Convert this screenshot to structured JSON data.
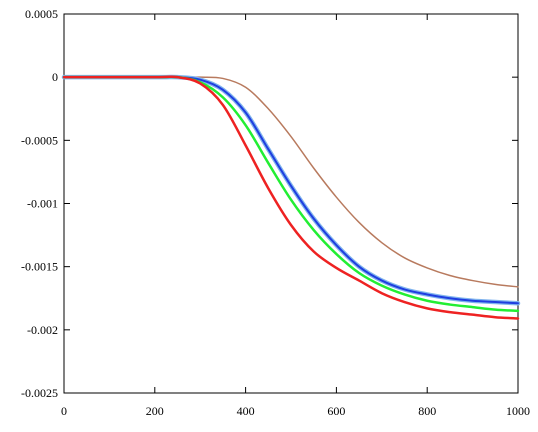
{
  "chart_data": {
    "type": "line",
    "title": "",
    "xlabel": "",
    "ylabel": "",
    "xlim": [
      0,
      1000
    ],
    "ylim": [
      -0.0025,
      0.0005
    ],
    "grid": false,
    "x_ticks": [
      0,
      200,
      400,
      600,
      800,
      1000
    ],
    "x_tick_labels": [
      "0",
      "200",
      "400",
      "600",
      "800",
      "1000"
    ],
    "y_ticks": [
      0.0005,
      0,
      -0.0005,
      -0.001,
      -0.0015,
      -0.002,
      -0.0025
    ],
    "y_tick_labels": [
      "0.0005",
      "0",
      "-0.0005",
      "-0.001",
      "-0.0015",
      "-0.002",
      "-0.0025"
    ],
    "series": [
      {
        "color": "#b87a5e",
        "stroke": 1.5,
        "points": [
          [
            0,
            0
          ],
          [
            200,
            0
          ],
          [
            250,
            0
          ],
          [
            300,
            0
          ],
          [
            350,
            -1e-05
          ],
          [
            400,
            -8e-05
          ],
          [
            450,
            -0.00025
          ],
          [
            500,
            -0.00047
          ],
          [
            550,
            -0.00072
          ],
          [
            600,
            -0.00095
          ],
          [
            650,
            -0.00115
          ],
          [
            700,
            -0.00131
          ],
          [
            750,
            -0.00143
          ],
          [
            800,
            -0.00151
          ],
          [
            850,
            -0.00157
          ],
          [
            900,
            -0.00161
          ],
          [
            950,
            -0.00164
          ],
          [
            1000,
            -0.00166
          ]
        ]
      },
      {
        "color": "#80b4ee",
        "stroke": 4.5,
        "points": [
          [
            0,
            0
          ],
          [
            200,
            0
          ],
          [
            250,
            0
          ],
          [
            300,
            -2e-05
          ],
          [
            350,
            -0.0001
          ],
          [
            400,
            -0.00028
          ],
          [
            450,
            -0.00057
          ],
          [
            500,
            -0.00086
          ],
          [
            550,
            -0.00112
          ],
          [
            600,
            -0.00133
          ],
          [
            650,
            -0.0015
          ],
          [
            700,
            -0.00161
          ],
          [
            750,
            -0.00168
          ],
          [
            800,
            -0.00172
          ],
          [
            850,
            -0.00175
          ],
          [
            900,
            -0.00177
          ],
          [
            950,
            -0.00178
          ],
          [
            1000,
            -0.00179
          ]
        ]
      },
      {
        "color": "#1f3ee0",
        "stroke": 2,
        "points": [
          [
            0,
            0
          ],
          [
            200,
            0
          ],
          [
            250,
            0
          ],
          [
            300,
            -2e-05
          ],
          [
            350,
            -0.0001
          ],
          [
            400,
            -0.00028
          ],
          [
            450,
            -0.00057
          ],
          [
            500,
            -0.00086
          ],
          [
            550,
            -0.00112
          ],
          [
            600,
            -0.00133
          ],
          [
            650,
            -0.0015
          ],
          [
            700,
            -0.00161
          ],
          [
            750,
            -0.00168
          ],
          [
            800,
            -0.00172
          ],
          [
            850,
            -0.00175
          ],
          [
            900,
            -0.00177
          ],
          [
            950,
            -0.00178
          ],
          [
            1000,
            -0.00179
          ]
        ]
      },
      {
        "color": "#22ee33",
        "stroke": 2.5,
        "points": [
          [
            0,
            0
          ],
          [
            200,
            0
          ],
          [
            250,
            0
          ],
          [
            300,
            -4e-05
          ],
          [
            350,
            -0.00016
          ],
          [
            400,
            -0.00038
          ],
          [
            450,
            -0.00068
          ],
          [
            500,
            -0.00097
          ],
          [
            550,
            -0.00121
          ],
          [
            600,
            -0.0014
          ],
          [
            650,
            -0.00155
          ],
          [
            700,
            -0.00165
          ],
          [
            750,
            -0.00172
          ],
          [
            800,
            -0.00177
          ],
          [
            850,
            -0.0018
          ],
          [
            900,
            -0.00182
          ],
          [
            950,
            -0.00184
          ],
          [
            1000,
            -0.00185
          ]
        ]
      },
      {
        "color": "#ee2222",
        "stroke": 2.5,
        "points": [
          [
            0,
            0
          ],
          [
            200,
            0
          ],
          [
            250,
            0
          ],
          [
            300,
            -5e-05
          ],
          [
            350,
            -0.00022
          ],
          [
            400,
            -0.00054
          ],
          [
            450,
            -0.00088
          ],
          [
            500,
            -0.00117
          ],
          [
            550,
            -0.00138
          ],
          [
            600,
            -0.00151
          ],
          [
            650,
            -0.00161
          ],
          [
            700,
            -0.00171
          ],
          [
            750,
            -0.00178
          ],
          [
            800,
            -0.00183
          ],
          [
            850,
            -0.00186
          ],
          [
            900,
            -0.00188
          ],
          [
            950,
            -0.0019
          ],
          [
            1000,
            -0.00191
          ]
        ]
      }
    ]
  }
}
